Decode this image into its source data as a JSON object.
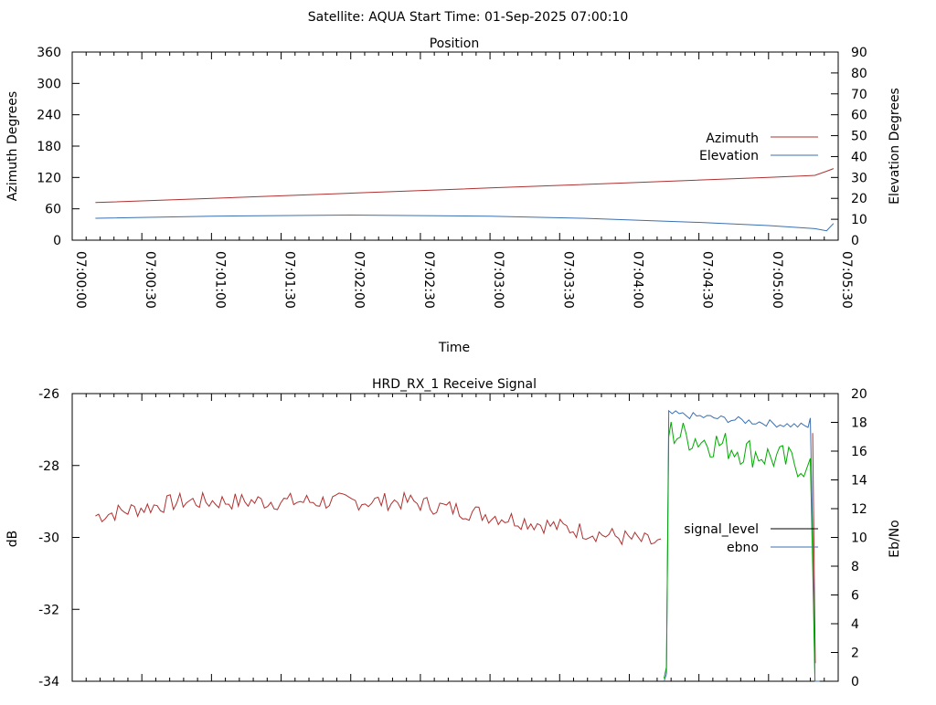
{
  "header": {
    "title": "Satellite: AQUA    Start Time: 01-Sep-2025 07:00:10"
  },
  "colors": {
    "azimuth": "#b03030",
    "elevation": "#3a6fb0",
    "signal_level": "#b03030",
    "ebno": "#3a6fb0",
    "green_trace": "#00aa00",
    "legend_signal": "#000000"
  },
  "chart_data": [
    {
      "type": "line",
      "title": "Position",
      "xlabel": "Time",
      "ylabel": "Azimuth Degrees",
      "y2label": "Elevation Degrees",
      "x_ticks": [
        "07:00:00",
        "07:00:30",
        "07:01:00",
        "07:01:30",
        "07:02:00",
        "07:02:30",
        "07:03:00",
        "07:03:30",
        "07:04:00",
        "07:04:30",
        "07:05:00",
        "07:05:30"
      ],
      "xlim_seconds": [
        0,
        330
      ],
      "ylim": [
        0,
        360
      ],
      "y_ticks": [
        0,
        60,
        120,
        180,
        240,
        300,
        360
      ],
      "y2lim": [
        0,
        90
      ],
      "y2_ticks": [
        0,
        10,
        20,
        30,
        40,
        50,
        60,
        70,
        80,
        90
      ],
      "legend": "right",
      "series": [
        {
          "name": "Azimuth",
          "axis": "y",
          "x": [
            10,
            60,
            120,
            180,
            240,
            300,
            320,
            325,
            328
          ],
          "values": [
            72,
            80,
            90,
            100,
            110,
            120,
            124,
            132,
            137
          ]
        },
        {
          "name": "Elevation",
          "axis": "y2",
          "x": [
            10,
            60,
            120,
            180,
            220,
            270,
            300,
            320,
            325,
            328
          ],
          "values": [
            10.5,
            11.5,
            12,
            11.5,
            10.5,
            8.5,
            7,
            5.5,
            4.5,
            8
          ]
        }
      ]
    },
    {
      "type": "line",
      "title": "HRD_RX_1 Receive Signal",
      "ylabel": "dB",
      "y2label": "Eb/No",
      "ylim": [
        -34,
        -26
      ],
      "y_ticks": [
        -34,
        -32,
        -30,
        -28,
        -26
      ],
      "y2lim": [
        0,
        20
      ],
      "y2_ticks": [
        0,
        2,
        4,
        6,
        8,
        10,
        12,
        14,
        16,
        18,
        20
      ],
      "xlim_seconds": [
        0,
        330
      ],
      "legend": "right",
      "legend_entries": [
        "signal_level",
        "ebno"
      ],
      "series": [
        {
          "name": "signal_level",
          "axis": "y",
          "x_start": 10,
          "x_end": 255,
          "start": -29.4,
          "mid": -29.0,
          "end": -30.2
        },
        {
          "name": "ebno",
          "axis": "y2",
          "x": [
            255,
            256,
            257,
            258,
            260,
            280,
            300,
            315,
            318,
            319,
            320,
            322
          ],
          "values": [
            0,
            0.5,
            18.5,
            18.5,
            18.8,
            18.6,
            18.2,
            17.5,
            18.3,
            10,
            0,
            0
          ]
        },
        {
          "name": "green",
          "axis": "y2",
          "x_start": 256,
          "x_end": 318,
          "start": 17,
          "end": 15
        }
      ]
    }
  ]
}
